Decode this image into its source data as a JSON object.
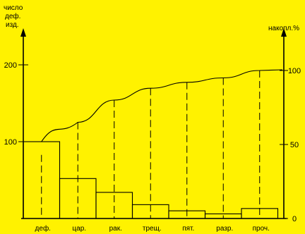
{
  "labels": {
    "left_axis_title": [
      "число",
      "деф.",
      "изд."
    ],
    "right_axis_title": "накопл.%"
  },
  "colors": {
    "background": "#FFF200",
    "ink": "#000000"
  },
  "chart_data": {
    "type": "bar",
    "subtype": "pareto",
    "categories": [
      "деф.",
      "цар.",
      "рак.",
      "трещ.",
      "пят.",
      "разр.",
      "проч."
    ],
    "values": [
      100,
      52,
      34,
      18,
      10,
      6,
      13
    ],
    "cumulative_percent": [
      43,
      65,
      80,
      88,
      92,
      95,
      100
    ],
    "left_axis": {
      "ylim": [
        0,
        220
      ],
      "ticks": [
        100,
        200
      ]
    },
    "right_axis": {
      "ylim": [
        0,
        110
      ],
      "ticks": [
        0,
        50,
        100
      ]
    },
    "grid": false,
    "legend": "none"
  }
}
